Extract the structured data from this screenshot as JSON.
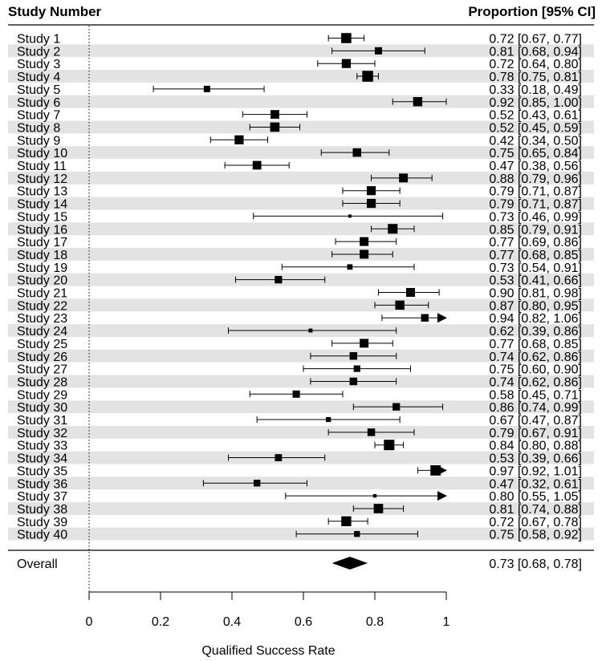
{
  "header": {
    "left": "Study Number",
    "right": "Proportion [95% CI]"
  },
  "chart_data": {
    "type": "forest",
    "xlabel": "Qualified Success Rate",
    "xlim": [
      0,
      1
    ],
    "xticks": [
      "0",
      "0.2",
      "0.4",
      "0.6",
      "0.8",
      "1"
    ],
    "reference_line": 0,
    "studies": [
      {
        "label": "Study 1",
        "est": 0.72,
        "lo": 0.67,
        "hi": 0.77,
        "text": "0.72 [0.67, 0.77]"
      },
      {
        "label": "Study 2",
        "est": 0.81,
        "lo": 0.68,
        "hi": 0.94,
        "text": "0.81 [0.68, 0.94]"
      },
      {
        "label": "Study 3",
        "est": 0.72,
        "lo": 0.64,
        "hi": 0.8,
        "text": "0.72 [0.64, 0.80]"
      },
      {
        "label": "Study 4",
        "est": 0.78,
        "lo": 0.75,
        "hi": 0.81,
        "text": "0.78 [0.75, 0.81]"
      },
      {
        "label": "Study 5",
        "est": 0.33,
        "lo": 0.18,
        "hi": 0.49,
        "text": "0.33 [0.18, 0.49]"
      },
      {
        "label": "Study 6",
        "est": 0.92,
        "lo": 0.85,
        "hi": 1.0,
        "text": "0.92 [0.85, 1.00]"
      },
      {
        "label": "Study 7",
        "est": 0.52,
        "lo": 0.43,
        "hi": 0.61,
        "text": "0.52 [0.43, 0.61]"
      },
      {
        "label": "Study 8",
        "est": 0.52,
        "lo": 0.45,
        "hi": 0.59,
        "text": "0.52 [0.45, 0.59]"
      },
      {
        "label": "Study 9",
        "est": 0.42,
        "lo": 0.34,
        "hi": 0.5,
        "text": "0.42 [0.34, 0.50]"
      },
      {
        "label": "Study 10",
        "est": 0.75,
        "lo": 0.65,
        "hi": 0.84,
        "text": "0.75 [0.65, 0.84]"
      },
      {
        "label": "Study 11",
        "est": 0.47,
        "lo": 0.38,
        "hi": 0.56,
        "text": "0.47 [0.38, 0.56]"
      },
      {
        "label": "Study 12",
        "est": 0.88,
        "lo": 0.79,
        "hi": 0.96,
        "text": "0.88 [0.79, 0.96]"
      },
      {
        "label": "Study 13",
        "est": 0.79,
        "lo": 0.71,
        "hi": 0.87,
        "text": "0.79 [0.71, 0.87]"
      },
      {
        "label": "Study 14",
        "est": 0.79,
        "lo": 0.71,
        "hi": 0.87,
        "text": "0.79 [0.71, 0.87]"
      },
      {
        "label": "Study 15",
        "est": 0.73,
        "lo": 0.46,
        "hi": 0.99,
        "text": "0.73 [0.46, 0.99]"
      },
      {
        "label": "Study 16",
        "est": 0.85,
        "lo": 0.79,
        "hi": 0.91,
        "text": "0.85 [0.79, 0.91]"
      },
      {
        "label": "Study 17",
        "est": 0.77,
        "lo": 0.69,
        "hi": 0.86,
        "text": "0.77 [0.69, 0.86]"
      },
      {
        "label": "Study 18",
        "est": 0.77,
        "lo": 0.68,
        "hi": 0.85,
        "text": "0.77 [0.68, 0.85]"
      },
      {
        "label": "Study 19",
        "est": 0.73,
        "lo": 0.54,
        "hi": 0.91,
        "text": "0.73 [0.54, 0.91]"
      },
      {
        "label": "Study 20",
        "est": 0.53,
        "lo": 0.41,
        "hi": 0.66,
        "text": "0.53 [0.41, 0.66]"
      },
      {
        "label": "Study 21",
        "est": 0.9,
        "lo": 0.81,
        "hi": 0.98,
        "text": "0.90 [0.81, 0.98]"
      },
      {
        "label": "Study 22",
        "est": 0.87,
        "lo": 0.8,
        "hi": 0.95,
        "text": "0.87 [0.80, 0.95]"
      },
      {
        "label": "Study 23",
        "est": 0.94,
        "lo": 0.82,
        "hi": 1.06,
        "text": "0.94 [0.82, 1.06]"
      },
      {
        "label": "Study 24",
        "est": 0.62,
        "lo": 0.39,
        "hi": 0.86,
        "text": "0.62 [0.39, 0.86]"
      },
      {
        "label": "Study 25",
        "est": 0.77,
        "lo": 0.68,
        "hi": 0.85,
        "text": "0.77 [0.68, 0.85]"
      },
      {
        "label": "Study 26",
        "est": 0.74,
        "lo": 0.62,
        "hi": 0.86,
        "text": "0.74 [0.62, 0.86]"
      },
      {
        "label": "Study 27",
        "est": 0.75,
        "lo": 0.6,
        "hi": 0.9,
        "text": "0.75 [0.60, 0.90]"
      },
      {
        "label": "Study 28",
        "est": 0.74,
        "lo": 0.62,
        "hi": 0.86,
        "text": "0.74 [0.62, 0.86]"
      },
      {
        "label": "Study 29",
        "est": 0.58,
        "lo": 0.45,
        "hi": 0.71,
        "text": "0.58 [0.45, 0.71]"
      },
      {
        "label": "Study 30",
        "est": 0.86,
        "lo": 0.74,
        "hi": 0.99,
        "text": "0.86 [0.74, 0.99]"
      },
      {
        "label": "Study 31",
        "est": 0.67,
        "lo": 0.47,
        "hi": 0.87,
        "text": "0.67 [0.47, 0.87]"
      },
      {
        "label": "Study 32",
        "est": 0.79,
        "lo": 0.67,
        "hi": 0.91,
        "text": "0.79 [0.67, 0.91]"
      },
      {
        "label": "Study 33",
        "est": 0.84,
        "lo": 0.8,
        "hi": 0.88,
        "text": "0.84 [0.80, 0.88]"
      },
      {
        "label": "Study 34",
        "est": 0.53,
        "lo": 0.39,
        "hi": 0.66,
        "text": "0.53 [0.39, 0.66]"
      },
      {
        "label": "Study 35",
        "est": 0.97,
        "lo": 0.92,
        "hi": 1.01,
        "text": "0.97 [0.92, 1.01]"
      },
      {
        "label": "Study 36",
        "est": 0.47,
        "lo": 0.32,
        "hi": 0.61,
        "text": "0.47 [0.32, 0.61]"
      },
      {
        "label": "Study 37",
        "est": 0.8,
        "lo": 0.55,
        "hi": 1.05,
        "text": "0.80 [0.55, 1.05]"
      },
      {
        "label": "Study 38",
        "est": 0.81,
        "lo": 0.74,
        "hi": 0.88,
        "text": "0.81 [0.74, 0.88]"
      },
      {
        "label": "Study 39",
        "est": 0.72,
        "lo": 0.67,
        "hi": 0.78,
        "text": "0.72 [0.67, 0.78]"
      },
      {
        "label": "Study 40",
        "est": 0.75,
        "lo": 0.58,
        "hi": 0.92,
        "text": "0.75 [0.58, 0.92]"
      }
    ],
    "overall": {
      "label": "Overall",
      "est": 0.73,
      "lo": 0.68,
      "hi": 0.78,
      "text": "0.73 [0.68, 0.78]"
    },
    "colors": {
      "stripe": "#e3e3e3",
      "mark": "#000000",
      "background": "#ffffff"
    }
  }
}
